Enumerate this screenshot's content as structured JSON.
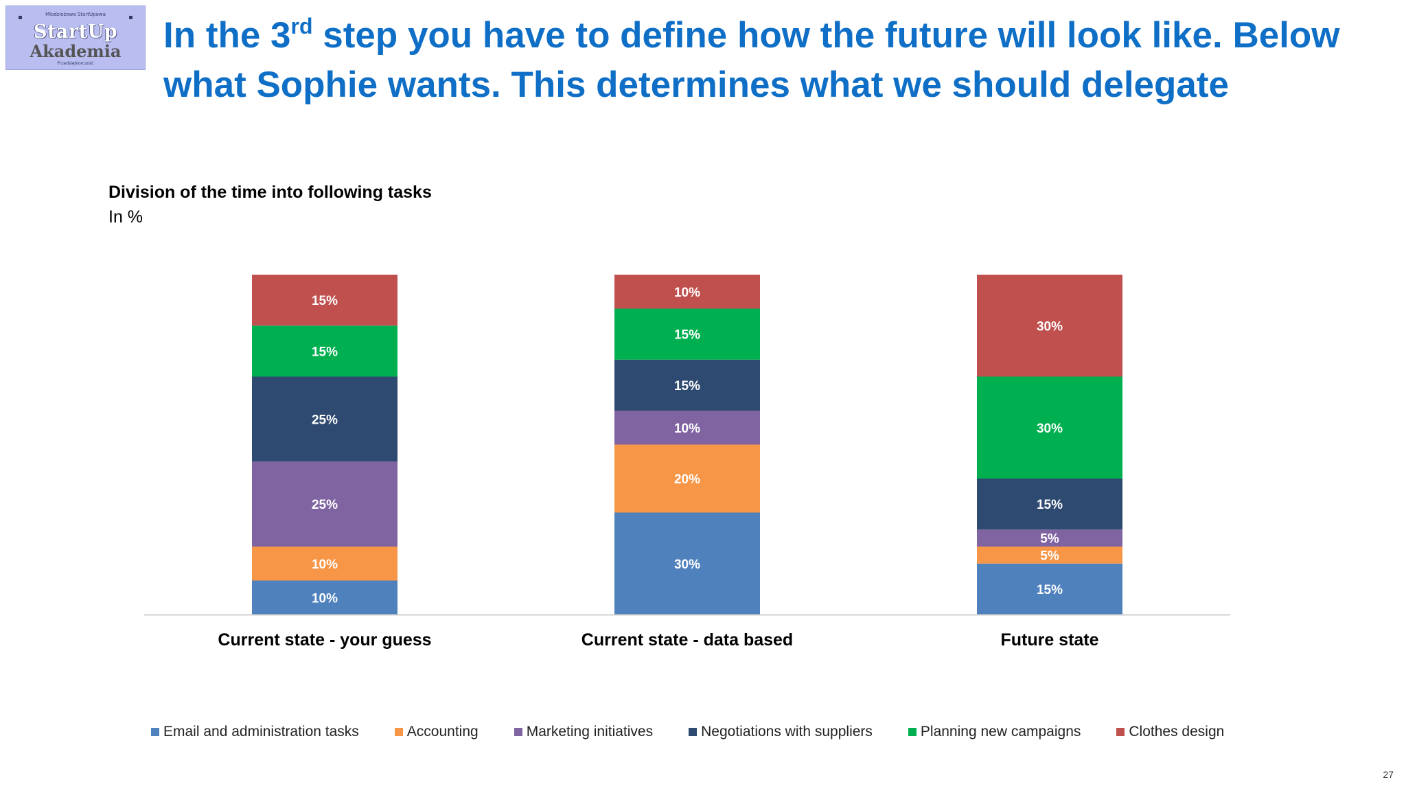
{
  "title": {
    "part1": "In the 3",
    "sup": "rd",
    "part2": " step you have to define how the future will look like. Below what Sophie wants. This determines what we should delegate"
  },
  "logo": {
    "top_text": "Mlodzieżowa StartUpowa",
    "brand_line1": "StartUp",
    "brand_line2": "Akademia",
    "bottom_text": "Przedsiębiorczość"
  },
  "page_number": "27",
  "chart_data": {
    "type": "bar",
    "stacked": true,
    "title": "Division of the time into following tasks",
    "subtitle": "In %",
    "categories": [
      "Current state - your guess",
      "Current state - data based",
      "Future state"
    ],
    "series": [
      {
        "name": "Email and administration tasks",
        "color": "#4f81bd",
        "values": [
          10,
          30,
          15
        ]
      },
      {
        "name": "Accounting",
        "color": "#f79646",
        "values": [
          10,
          20,
          5
        ]
      },
      {
        "name": "Marketing initiatives",
        "color": "#8064a2",
        "values": [
          25,
          10,
          5
        ]
      },
      {
        "name": "Negotiations with suppliers",
        "color": "#2e4a70",
        "values": [
          25,
          15,
          15
        ]
      },
      {
        "name": "Planning new campaigns",
        "color": "#00b050",
        "values": [
          15,
          15,
          30
        ]
      },
      {
        "name": "Clothes design",
        "color": "#c0504d",
        "values": [
          15,
          10,
          30
        ]
      }
    ],
    "data_labels": [
      [
        "10%",
        "30%",
        "15%"
      ],
      [
        "10%",
        "20%",
        "5%"
      ],
      [
        "25%",
        "10%",
        "5%"
      ],
      [
        "25%",
        "15%",
        "15%"
      ],
      [
        "15%",
        "15%",
        "30%"
      ],
      [
        "15%",
        "10%",
        "30%"
      ]
    ],
    "ylim": [
      0,
      100
    ],
    "grid": false,
    "legend_position": "bottom"
  }
}
